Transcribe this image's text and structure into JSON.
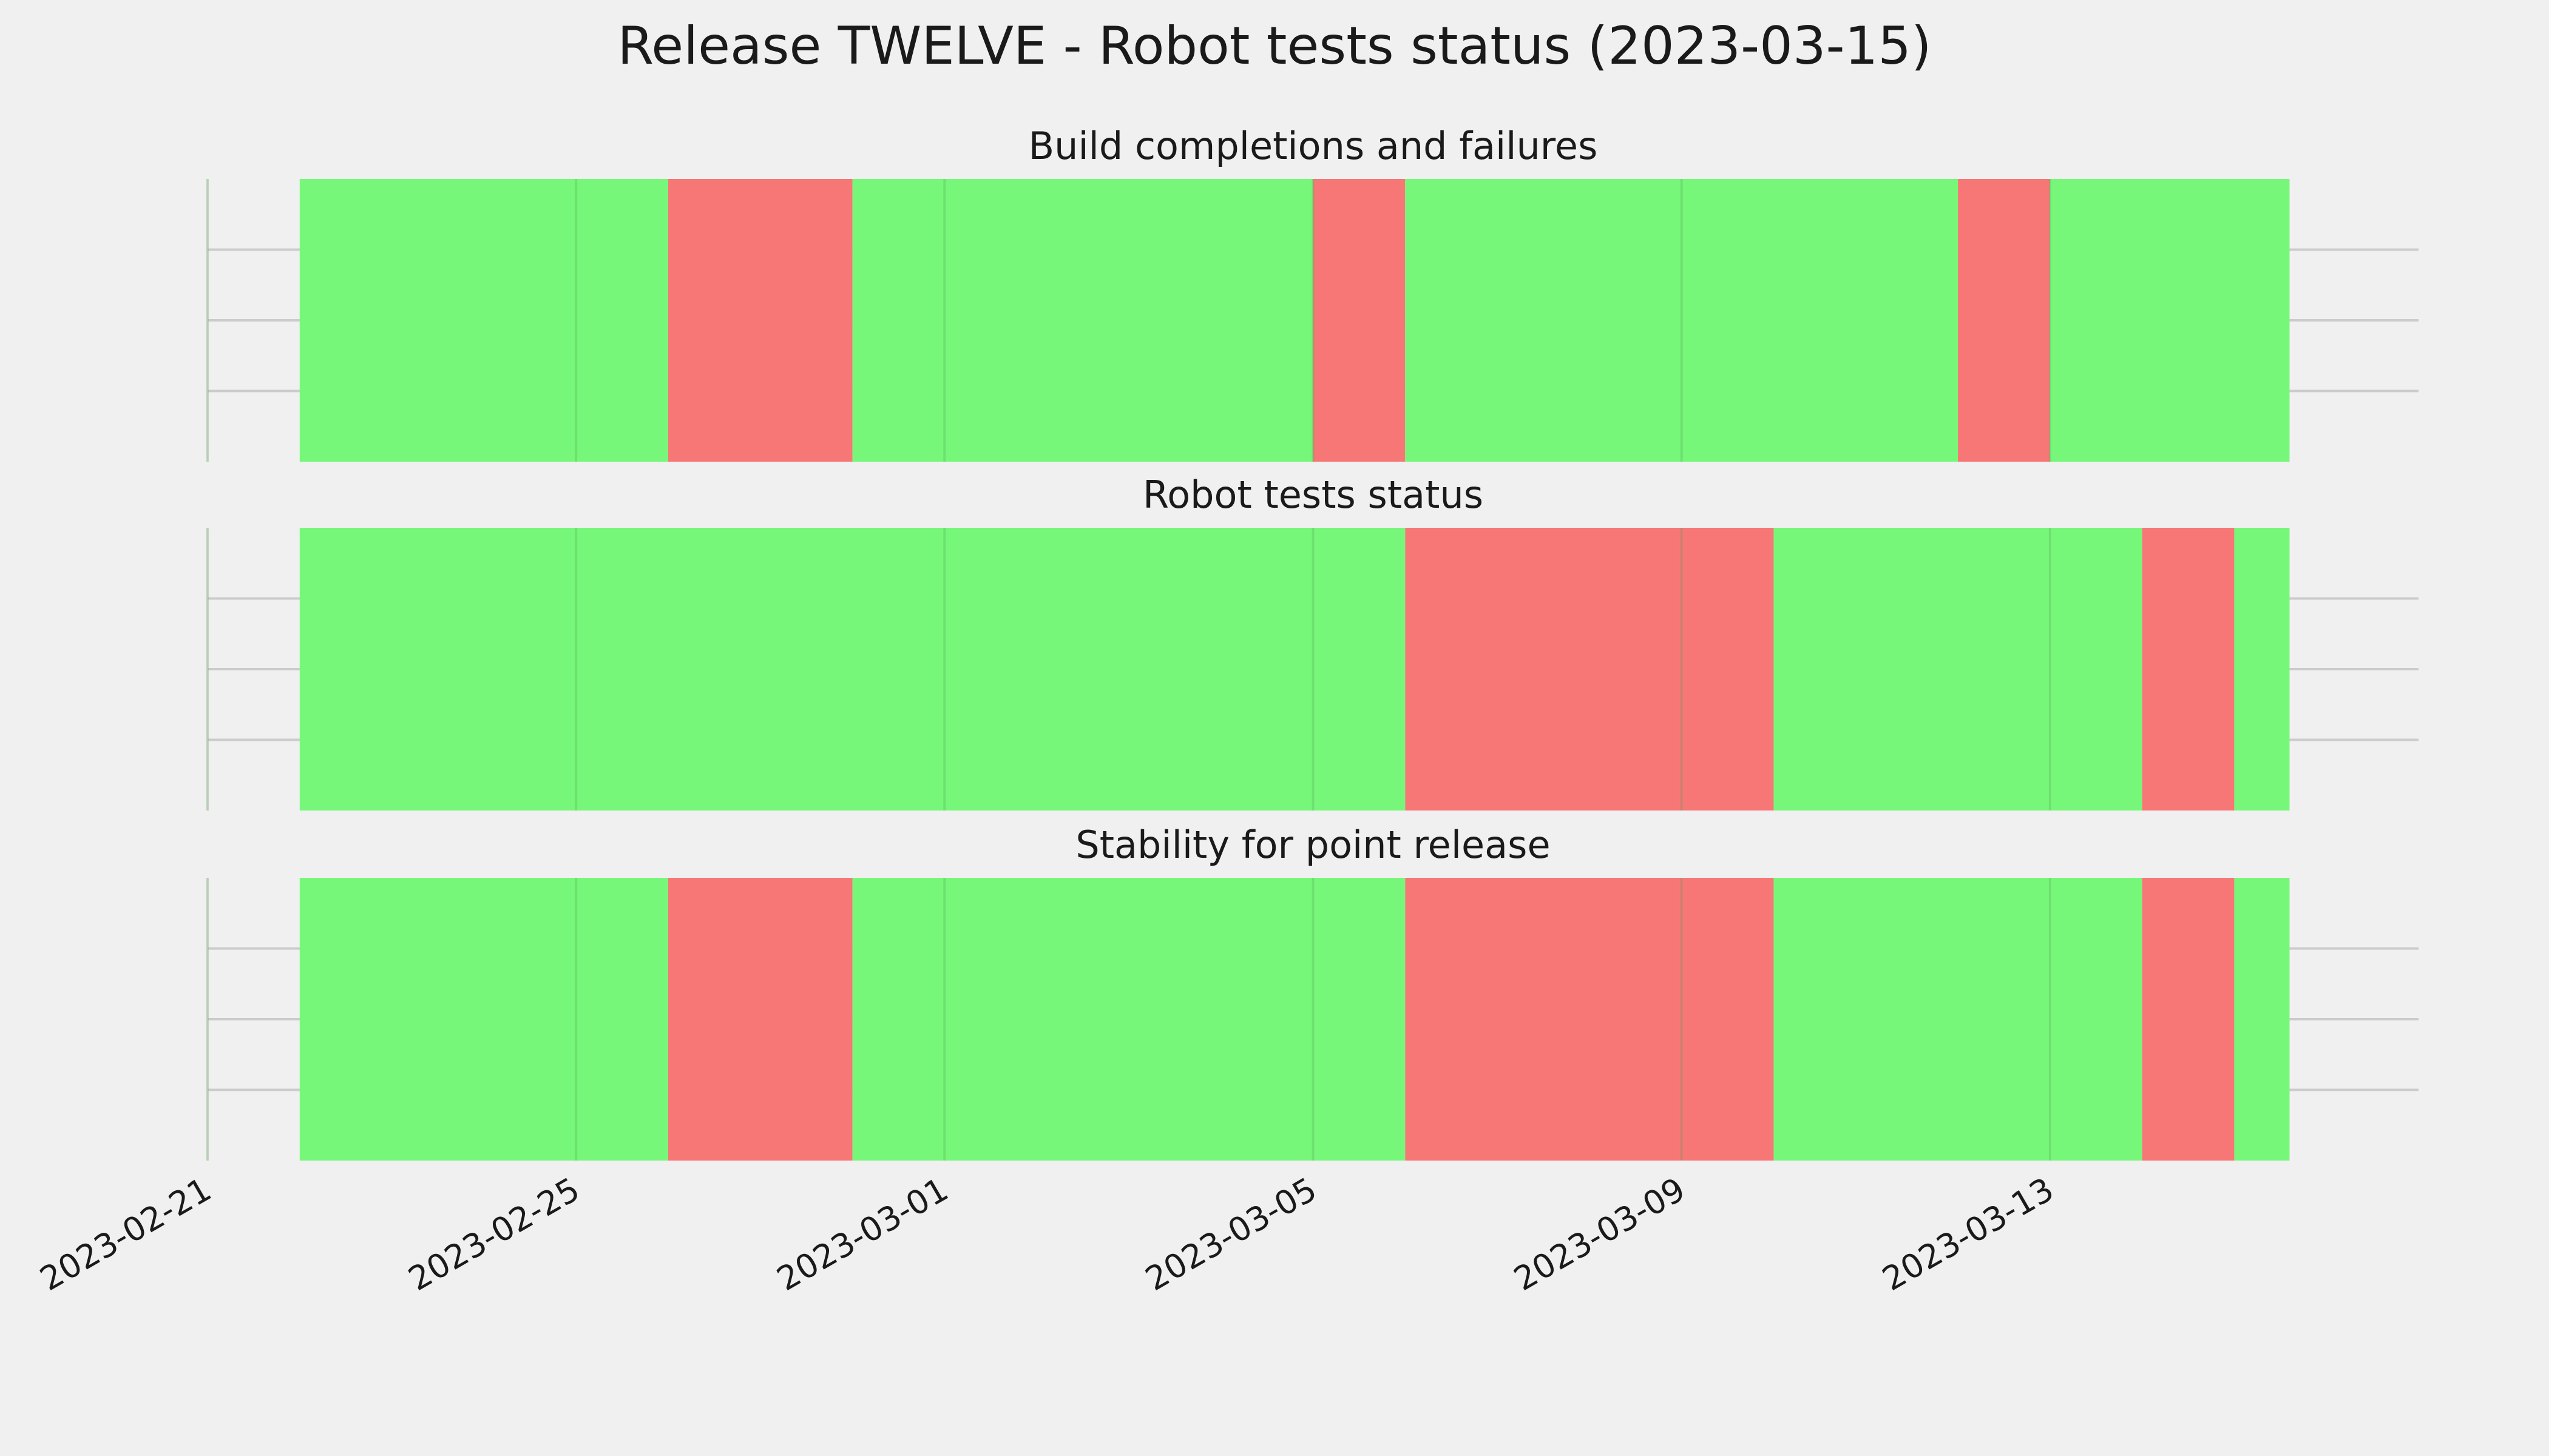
{
  "title": "Release TWELVE - Robot tests status (2023-03-15)",
  "colors": {
    "background": "#f0f0f0",
    "pass": "#77f77a",
    "fail": "#f77777",
    "grid": "#cbcbcb",
    "text": "#1a1a1a"
  },
  "chart_data": [
    {
      "type": "timeline",
      "title": "Build completions and failures",
      "xlim": [
        "2023-02-21",
        "2023-03-17"
      ],
      "grid": true,
      "segments": [
        {
          "start": "2023-02-22",
          "end": "2023-02-26",
          "status": "pass"
        },
        {
          "start": "2023-02-26",
          "end": "2023-02-28",
          "status": "fail"
        },
        {
          "start": "2023-02-28",
          "end": "2023-03-05",
          "status": "pass"
        },
        {
          "start": "2023-03-05",
          "end": "2023-03-06",
          "status": "fail"
        },
        {
          "start": "2023-03-06",
          "end": "2023-03-12",
          "status": "pass"
        },
        {
          "start": "2023-03-12",
          "end": "2023-03-13",
          "status": "fail"
        },
        {
          "start": "2023-03-13",
          "end": "2023-03-15.6",
          "status": "pass"
        }
      ]
    },
    {
      "type": "timeline",
      "title": "Robot tests status",
      "xlim": [
        "2023-02-21",
        "2023-03-17"
      ],
      "grid": true,
      "segments": [
        {
          "start": "2023-02-22",
          "end": "2023-03-06",
          "status": "pass"
        },
        {
          "start": "2023-03-06",
          "end": "2023-03-10",
          "status": "fail"
        },
        {
          "start": "2023-03-10",
          "end": "2023-03-14",
          "status": "pass"
        },
        {
          "start": "2023-03-14",
          "end": "2023-03-15",
          "status": "fail"
        },
        {
          "start": "2023-03-15",
          "end": "2023-03-15.6",
          "status": "pass"
        }
      ]
    },
    {
      "type": "timeline",
      "title": "Stability for point release",
      "xlim": [
        "2023-02-21",
        "2023-03-17"
      ],
      "grid": true,
      "segments": [
        {
          "start": "2023-02-22",
          "end": "2023-02-26",
          "status": "pass"
        },
        {
          "start": "2023-02-26",
          "end": "2023-02-28",
          "status": "fail"
        },
        {
          "start": "2023-02-28",
          "end": "2023-03-06",
          "status": "pass"
        },
        {
          "start": "2023-03-06",
          "end": "2023-03-10",
          "status": "fail"
        },
        {
          "start": "2023-03-10",
          "end": "2023-03-14",
          "status": "pass"
        },
        {
          "start": "2023-03-14",
          "end": "2023-03-15",
          "status": "fail"
        },
        {
          "start": "2023-03-15",
          "end": "2023-03-15.6",
          "status": "pass"
        }
      ]
    }
  ],
  "x_ticks": [
    "2023-02-21",
    "2023-02-25",
    "2023-03-01",
    "2023-03-05",
    "2023-03-09",
    "2023-03-13"
  ]
}
